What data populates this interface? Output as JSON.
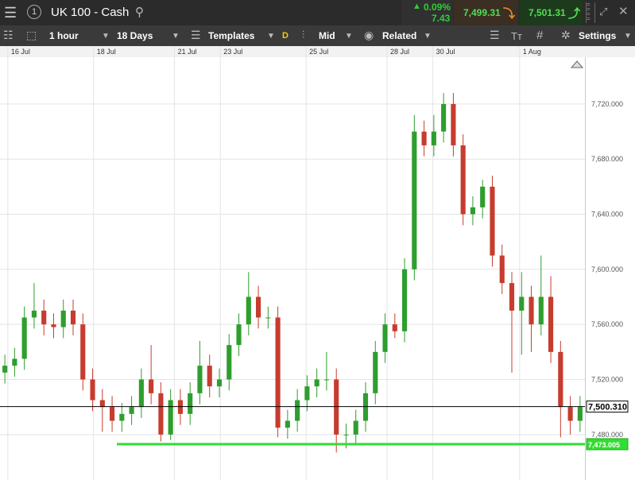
{
  "header": {
    "title": "UK 100 - Cash",
    "account": "1",
    "change_pct": "0.09%",
    "change_pts": "7.43",
    "sell": "7,499.31",
    "buy": "7,501.31"
  },
  "toolbar": {
    "interval": "1 hour",
    "range": "18 Days",
    "templates": "Templates",
    "d": "D",
    "price": "Mid",
    "related": "Related",
    "text": "Tт",
    "grid": "#",
    "settings": "Settings"
  },
  "chart_data": {
    "type": "candlestick",
    "up_color": "#2e9e2e",
    "down_color": "#c63c2e",
    "open": [
      7525,
      7530,
      7535,
      7565,
      7570,
      7560,
      7558,
      7570,
      7560,
      7520,
      7505,
      7500,
      7490,
      7495,
      7500,
      7520,
      7510,
      7480,
      7505,
      7495,
      7510,
      7530,
      7515,
      7520,
      7545,
      7560,
      7580,
      7565,
      7565,
      7485,
      7490,
      7505,
      7515,
      7520,
      7520,
      7480,
      7480,
      7490,
      7510,
      7540,
      7560,
      7555,
      7600,
      7700,
      7690,
      7700,
      7720,
      7690,
      7640,
      7645,
      7660,
      7610,
      7590,
      7570,
      7580,
      7560,
      7580,
      7540,
      7500,
      7490
    ],
    "high": [
      7538,
      7543,
      7573,
      7590,
      7578,
      7568,
      7578,
      7578,
      7568,
      7528,
      7513,
      7508,
      7503,
      7508,
      7528,
      7545,
      7518,
      7513,
      7513,
      7518,
      7548,
      7538,
      7528,
      7553,
      7568,
      7598,
      7588,
      7573,
      7573,
      7498,
      7513,
      7523,
      7528,
      7540,
      7528,
      7488,
      7498,
      7518,
      7548,
      7568,
      7568,
      7608,
      7712,
      7708,
      7712,
      7728,
      7728,
      7698,
      7653,
      7665,
      7668,
      7618,
      7598,
      7598,
      7588,
      7610,
      7595,
      7548,
      7508,
      7508
    ],
    "low": [
      7517,
      7522,
      7527,
      7557,
      7552,
      7550,
      7550,
      7552,
      7512,
      7497,
      7482,
      7482,
      7482,
      7487,
      7492,
      7502,
      7475,
      7476,
      7487,
      7487,
      7502,
      7507,
      7507,
      7512,
      7537,
      7552,
      7557,
      7557,
      7478,
      7477,
      7482,
      7497,
      7507,
      7512,
      7467,
      7470,
      7472,
      7482,
      7502,
      7532,
      7550,
      7547,
      7592,
      7682,
      7682,
      7692,
      7682,
      7632,
      7632,
      7637,
      7602,
      7582,
      7525,
      7538,
      7540,
      7552,
      7532,
      7478,
      7480,
      7482
    ],
    "close": [
      7530,
      7535,
      7565,
      7570,
      7560,
      7558,
      7570,
      7560,
      7520,
      7505,
      7500,
      7490,
      7495,
      7500,
      7520,
      7510,
      7480,
      7505,
      7495,
      7510,
      7530,
      7515,
      7520,
      7545,
      7560,
      7580,
      7565,
      7565,
      7485,
      7490,
      7505,
      7515,
      7520,
      7520,
      7480,
      7480,
      7490,
      7510,
      7540,
      7560,
      7555,
      7600,
      7700,
      7690,
      7700,
      7720,
      7690,
      7640,
      7645,
      7660,
      7610,
      7590,
      7570,
      7580,
      7560,
      7580,
      7540,
      7500,
      7490,
      7500
    ],
    "xlim": [
      0,
      60
    ],
    "xticks": [
      {
        "value": 0.8,
        "label": "16 Jul"
      },
      {
        "value": 9.6,
        "label": "18 Jul"
      },
      {
        "value": 17.9,
        "label": "21 Jul"
      },
      {
        "value": 22.6,
        "label": "23 Jul"
      },
      {
        "value": 31.4,
        "label": "25 Jul"
      },
      {
        "value": 39.7,
        "label": "28 Jul"
      },
      {
        "value": 44.4,
        "label": "30 Jul"
      },
      {
        "value": 53.3,
        "label": "1 Aug"
      }
    ],
    "ylim": [
      7447,
      7754
    ],
    "yticks": [
      {
        "value": 7480,
        "label": "7,480.000"
      },
      {
        "value": 7520,
        "label": "7,520.000"
      },
      {
        "value": 7560,
        "label": "7,560.000"
      },
      {
        "value": 7600,
        "label": "7,600.000"
      },
      {
        "value": 7640,
        "label": "7,640.000"
      },
      {
        "value": 7680,
        "label": "7,680.000"
      },
      {
        "value": 7720,
        "label": "7,720.000"
      }
    ],
    "grid": true,
    "price_lines": [
      {
        "value": 7500.31,
        "label": "7,500.310",
        "color": "#000000"
      },
      {
        "value": 7473.005,
        "label": "7,473.005",
        "color": "#33dd33"
      }
    ]
  }
}
